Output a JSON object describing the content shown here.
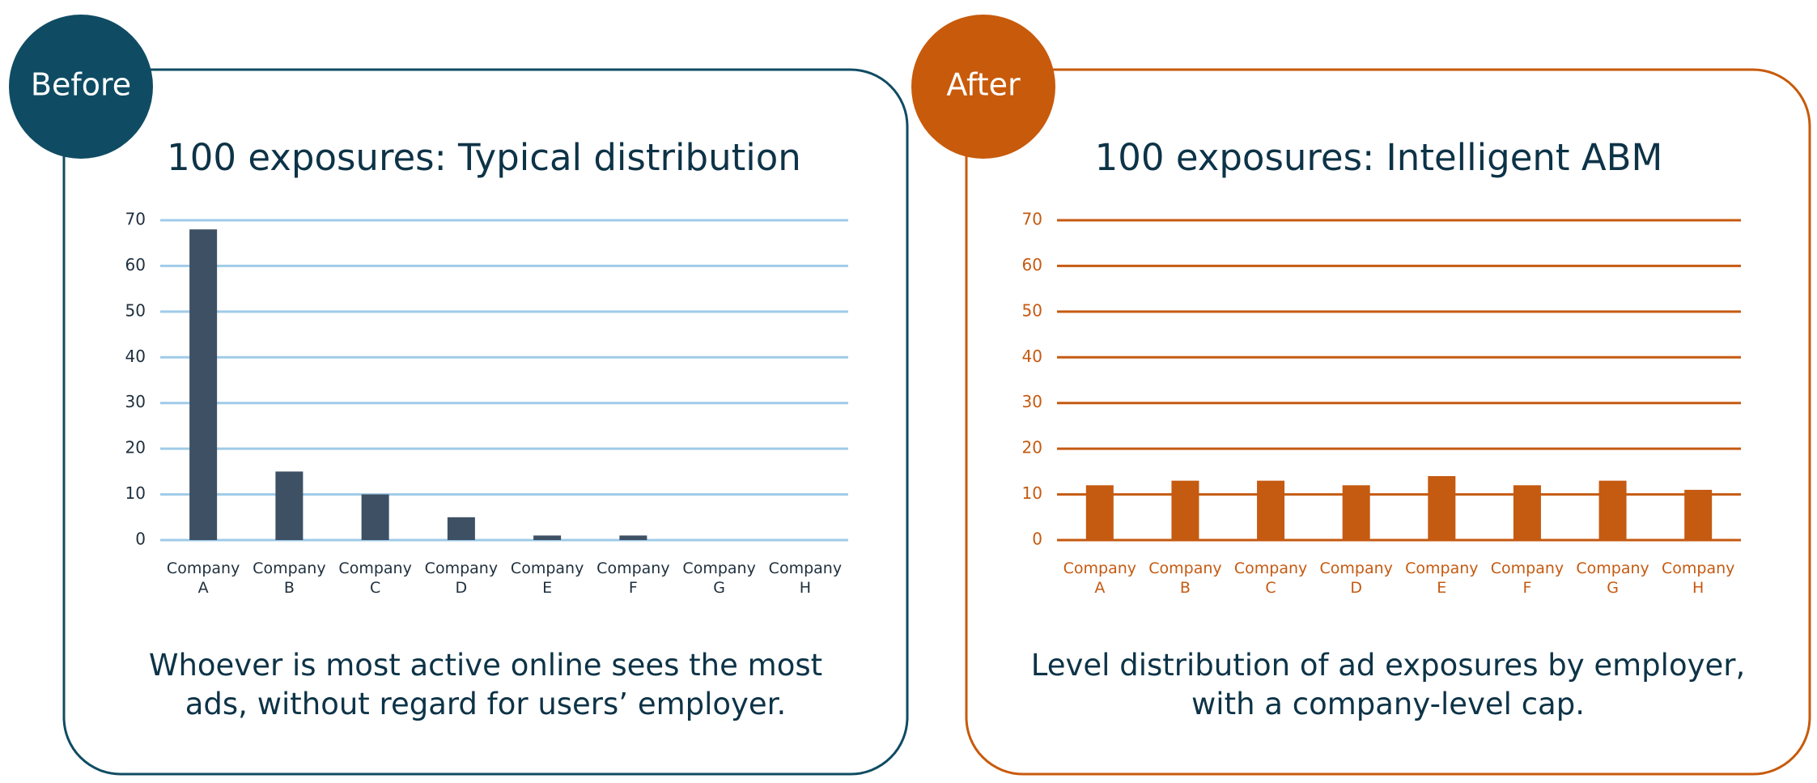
{
  "chart_data": [
    {
      "type": "bar",
      "label": "Before",
      "title": "100 exposures: Typical distribution",
      "categories": [
        "Company A",
        "Company B",
        "Company C",
        "Company D",
        "Company E",
        "Company F",
        "Company G",
        "Company H"
      ],
      "values": [
        68,
        15,
        10,
        5,
        1,
        1,
        0,
        0
      ],
      "color": "#3d5064",
      "ylim": [
        0,
        70
      ],
      "yticks": [
        0,
        10,
        20,
        30,
        40,
        50,
        60,
        70
      ],
      "grid": true,
      "grid_color": "#9fcbe8",
      "caption": "Whoever is most active online sees the most ads, without regard for users’ employer."
    },
    {
      "type": "bar",
      "label": "After",
      "title": "100 exposures: Intelligent ABM",
      "categories": [
        "Company A",
        "Company B",
        "Company C",
        "Company D",
        "Company E",
        "Company F",
        "Company G",
        "Company H"
      ],
      "values": [
        12,
        13,
        13,
        12,
        14,
        12,
        13,
        11
      ],
      "color": "#c55a11",
      "ylim": [
        0,
        70
      ],
      "yticks": [
        0,
        10,
        20,
        30,
        40,
        50,
        60,
        70
      ],
      "grid": true,
      "grid_color": "#c55a11",
      "caption": "Level distribution of ad exposures by employer, with a company-level cap."
    }
  ]
}
